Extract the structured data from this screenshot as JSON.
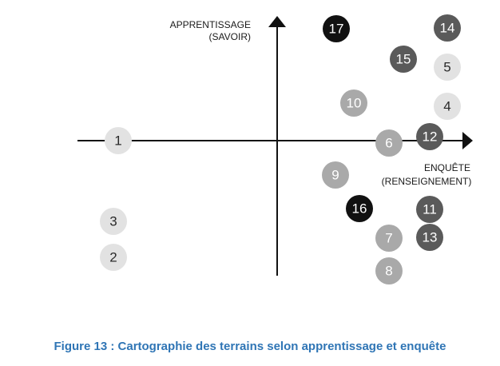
{
  "axes": {
    "vertical": {
      "line1": "APPRENTISSAGE",
      "line2": "(SAVOIR)"
    },
    "horizontal": {
      "line1": "ENQUÊTE",
      "line2": "(RENSEIGNEMENT)"
    }
  },
  "shade_colors": {
    "light": "#e2e2e2",
    "mid": "#a9a9a9",
    "dark": "#5a5a5a",
    "black": "#111111"
  },
  "nodes": [
    {
      "label": "1",
      "shade": "light"
    },
    {
      "label": "2",
      "shade": "light"
    },
    {
      "label": "3",
      "shade": "light"
    },
    {
      "label": "4",
      "shade": "light"
    },
    {
      "label": "5",
      "shade": "light"
    },
    {
      "label": "6",
      "shade": "mid"
    },
    {
      "label": "7",
      "shade": "mid"
    },
    {
      "label": "8",
      "shade": "mid"
    },
    {
      "label": "9",
      "shade": "mid"
    },
    {
      "label": "10",
      "shade": "mid"
    },
    {
      "label": "11",
      "shade": "dark"
    },
    {
      "label": "12",
      "shade": "dark"
    },
    {
      "label": "13",
      "shade": "dark"
    },
    {
      "label": "14",
      "shade": "dark"
    },
    {
      "label": "15",
      "shade": "dark"
    },
    {
      "label": "16",
      "shade": "black"
    },
    {
      "label": "17",
      "shade": "black"
    }
  ],
  "caption": "Figure 13 : Cartographie des terrains selon apprentissage et enquête"
}
